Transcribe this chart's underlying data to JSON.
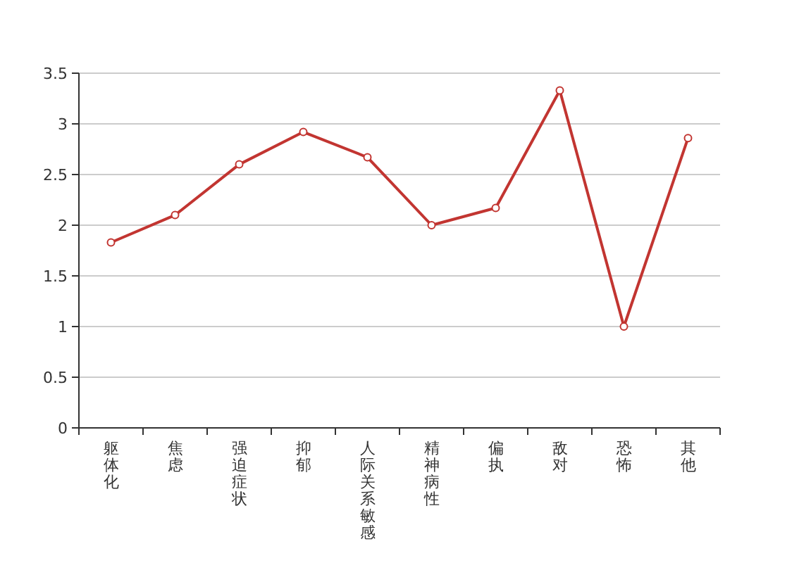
{
  "chart_data": {
    "type": "line",
    "categories": [
      "躯体化",
      "焦虑",
      "强迫症状",
      "抑郁",
      "人际关系敏感",
      "精神病性",
      "偏执",
      "敌对",
      "恐怖",
      "其他"
    ],
    "series": [
      {
        "color": "#c23531",
        "values": [
          1.83,
          2.1,
          2.6,
          2.92,
          2.67,
          2.0,
          2.17,
          3.33,
          1.0,
          2.86
        ]
      }
    ],
    "ylim": [
      0,
      3.5
    ],
    "yticks": [
      0,
      0.5,
      1,
      1.5,
      2,
      2.5,
      3,
      3.5
    ],
    "grid": "y",
    "marker": "circle"
  }
}
